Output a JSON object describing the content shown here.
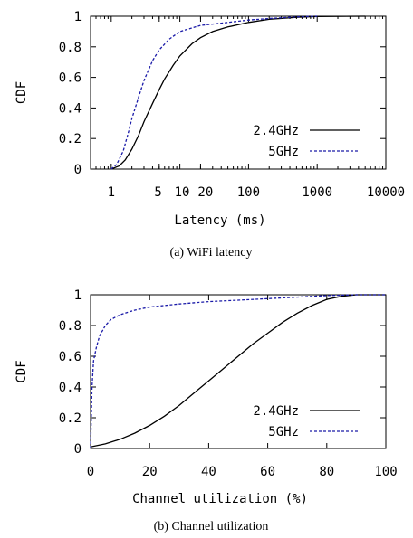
{
  "chart_data": [
    {
      "type": "line",
      "caption": "(a) WiFi latency",
      "xlabel": "Latency (ms)",
      "ylabel": "CDF",
      "xscale": "log",
      "xlim": [
        0.5,
        10000
      ],
      "ylim": [
        0,
        1
      ],
      "x_ticks": [
        1,
        5,
        10,
        20,
        100,
        1000,
        10000
      ],
      "x_tick_labels": [
        "1",
        "5",
        "10",
        "20",
        "100",
        "1000",
        "10000"
      ],
      "y_ticks": [
        0,
        0.2,
        0.4,
        0.6,
        0.8,
        1
      ],
      "y_tick_labels": [
        "0",
        "0.2",
        "0.4",
        "0.6",
        "0.8",
        "1"
      ],
      "legend": "right",
      "series": [
        {
          "name": "2.4GHz",
          "color": "#000000",
          "dash": "solid",
          "points": [
            [
              1,
              0
            ],
            [
              1.3,
              0.02
            ],
            [
              1.6,
              0.06
            ],
            [
              2,
              0.13
            ],
            [
              2.5,
              0.22
            ],
            [
              3,
              0.31
            ],
            [
              4,
              0.43
            ],
            [
              5,
              0.52
            ],
            [
              6,
              0.59
            ],
            [
              8,
              0.68
            ],
            [
              10,
              0.74
            ],
            [
              15,
              0.82
            ],
            [
              20,
              0.86
            ],
            [
              30,
              0.9
            ],
            [
              50,
              0.93
            ],
            [
              100,
              0.96
            ],
            [
              200,
              0.98
            ],
            [
              500,
              0.993
            ],
            [
              1000,
              0.998
            ],
            [
              5000,
              1
            ]
          ]
        },
        {
          "name": "5GHz",
          "color": "#1a1aa8",
          "dash": "dashed",
          "points": [
            [
              1,
              0
            ],
            [
              1.2,
              0.03
            ],
            [
              1.5,
              0.12
            ],
            [
              1.8,
              0.25
            ],
            [
              2,
              0.33
            ],
            [
              2.5,
              0.47
            ],
            [
              3,
              0.58
            ],
            [
              4,
              0.71
            ],
            [
              5,
              0.78
            ],
            [
              7,
              0.85
            ],
            [
              10,
              0.9
            ],
            [
              20,
              0.94
            ],
            [
              50,
              0.96
            ],
            [
              100,
              0.975
            ],
            [
              200,
              0.985
            ],
            [
              500,
              0.995
            ],
            [
              1000,
              1
            ]
          ]
        }
      ]
    },
    {
      "type": "line",
      "caption": "(b) Channel utilization",
      "xlabel": "Channel utilization (%)",
      "ylabel": "CDF",
      "xscale": "linear",
      "xlim": [
        0,
        100
      ],
      "ylim": [
        0,
        1
      ],
      "x_ticks": [
        0,
        20,
        40,
        60,
        80,
        100
      ],
      "x_tick_labels": [
        "0",
        "20",
        "40",
        "60",
        "80",
        "100"
      ],
      "y_ticks": [
        0,
        0.2,
        0.4,
        0.6,
        0.8,
        1
      ],
      "y_tick_labels": [
        "0",
        "0.2",
        "0.4",
        "0.6",
        "0.8",
        "1"
      ],
      "legend": "right",
      "series": [
        {
          "name": "2.4GHz",
          "color": "#000000",
          "dash": "solid",
          "points": [
            [
              0,
              0.01
            ],
            [
              5,
              0.03
            ],
            [
              10,
              0.06
            ],
            [
              15,
              0.1
            ],
            [
              20,
              0.15
            ],
            [
              25,
              0.21
            ],
            [
              30,
              0.28
            ],
            [
              35,
              0.36
            ],
            [
              40,
              0.44
            ],
            [
              45,
              0.52
            ],
            [
              50,
              0.6
            ],
            [
              55,
              0.68
            ],
            [
              60,
              0.75
            ],
            [
              65,
              0.82
            ],
            [
              70,
              0.88
            ],
            [
              75,
              0.93
            ],
            [
              80,
              0.97
            ],
            [
              85,
              0.99
            ],
            [
              90,
              1
            ],
            [
              100,
              1
            ]
          ]
        },
        {
          "name": "5GHz",
          "color": "#1a1aa8",
          "dash": "dashed",
          "points": [
            [
              0,
              0
            ],
            [
              0.5,
              0.4
            ],
            [
              1,
              0.57
            ],
            [
              2,
              0.66
            ],
            [
              3,
              0.73
            ],
            [
              5,
              0.8
            ],
            [
              7,
              0.84
            ],
            [
              10,
              0.87
            ],
            [
              15,
              0.9
            ],
            [
              20,
              0.92
            ],
            [
              30,
              0.94
            ],
            [
              40,
              0.955
            ],
            [
              50,
              0.965
            ],
            [
              60,
              0.975
            ],
            [
              70,
              0.985
            ],
            [
              80,
              0.995
            ],
            [
              90,
              1
            ],
            [
              100,
              1
            ]
          ]
        }
      ]
    }
  ]
}
